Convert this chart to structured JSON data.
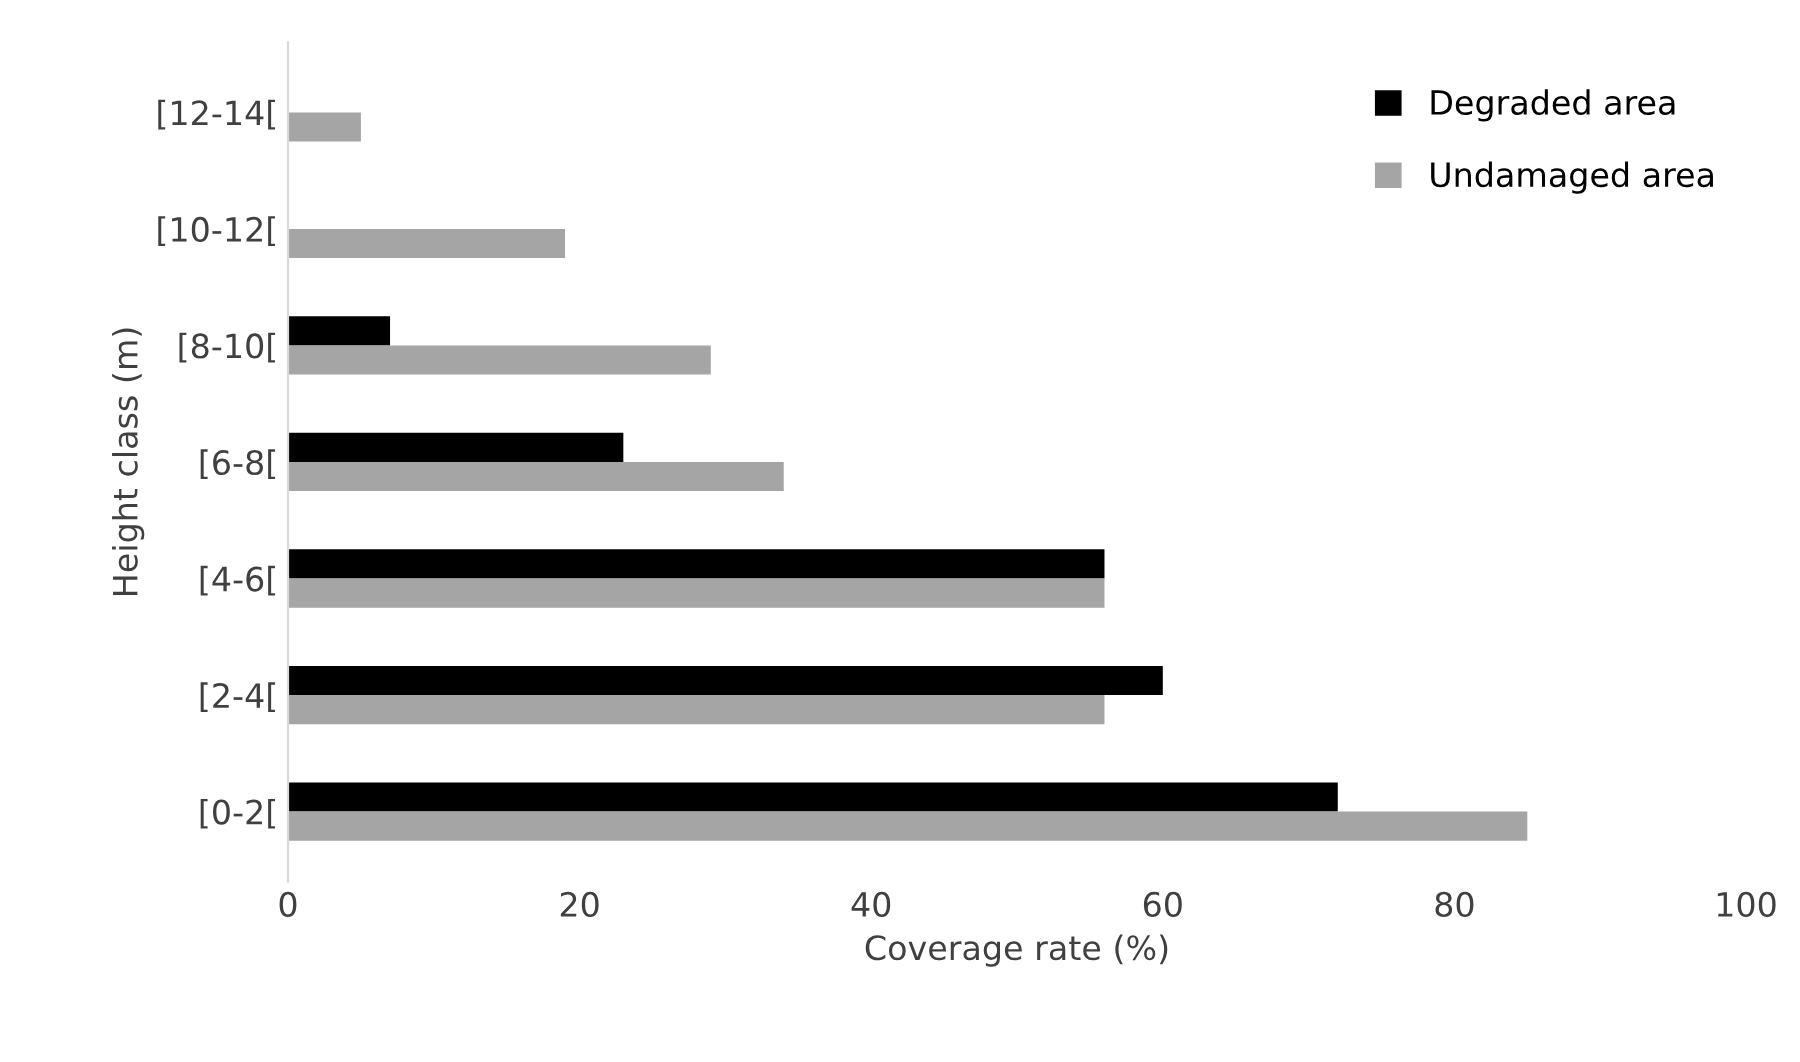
{
  "chart_data": {
    "type": "bar",
    "orientation": "horizontal",
    "xlabel": "Coverage rate (%)",
    "ylabel": "Height class (m)",
    "categories": [
      "[12-14[",
      "[10-12[",
      "[8-10[",
      "[6-8[",
      "[4-6[",
      "[2-4[",
      "[0-2["
    ],
    "series": [
      {
        "name": "Degraded area",
        "color": "#000000",
        "values": [
          null,
          null,
          7,
          23,
          56,
          60,
          72
        ]
      },
      {
        "name": "Undamaged area",
        "color": "#a5a5a5",
        "values": [
          5,
          19,
          29,
          34,
          56,
          56,
          85
        ]
      }
    ],
    "xlim": [
      0,
      100
    ],
    "xticks": [
      0,
      20,
      40,
      60,
      80,
      100
    ],
    "grid": false,
    "legend": "top right"
  }
}
